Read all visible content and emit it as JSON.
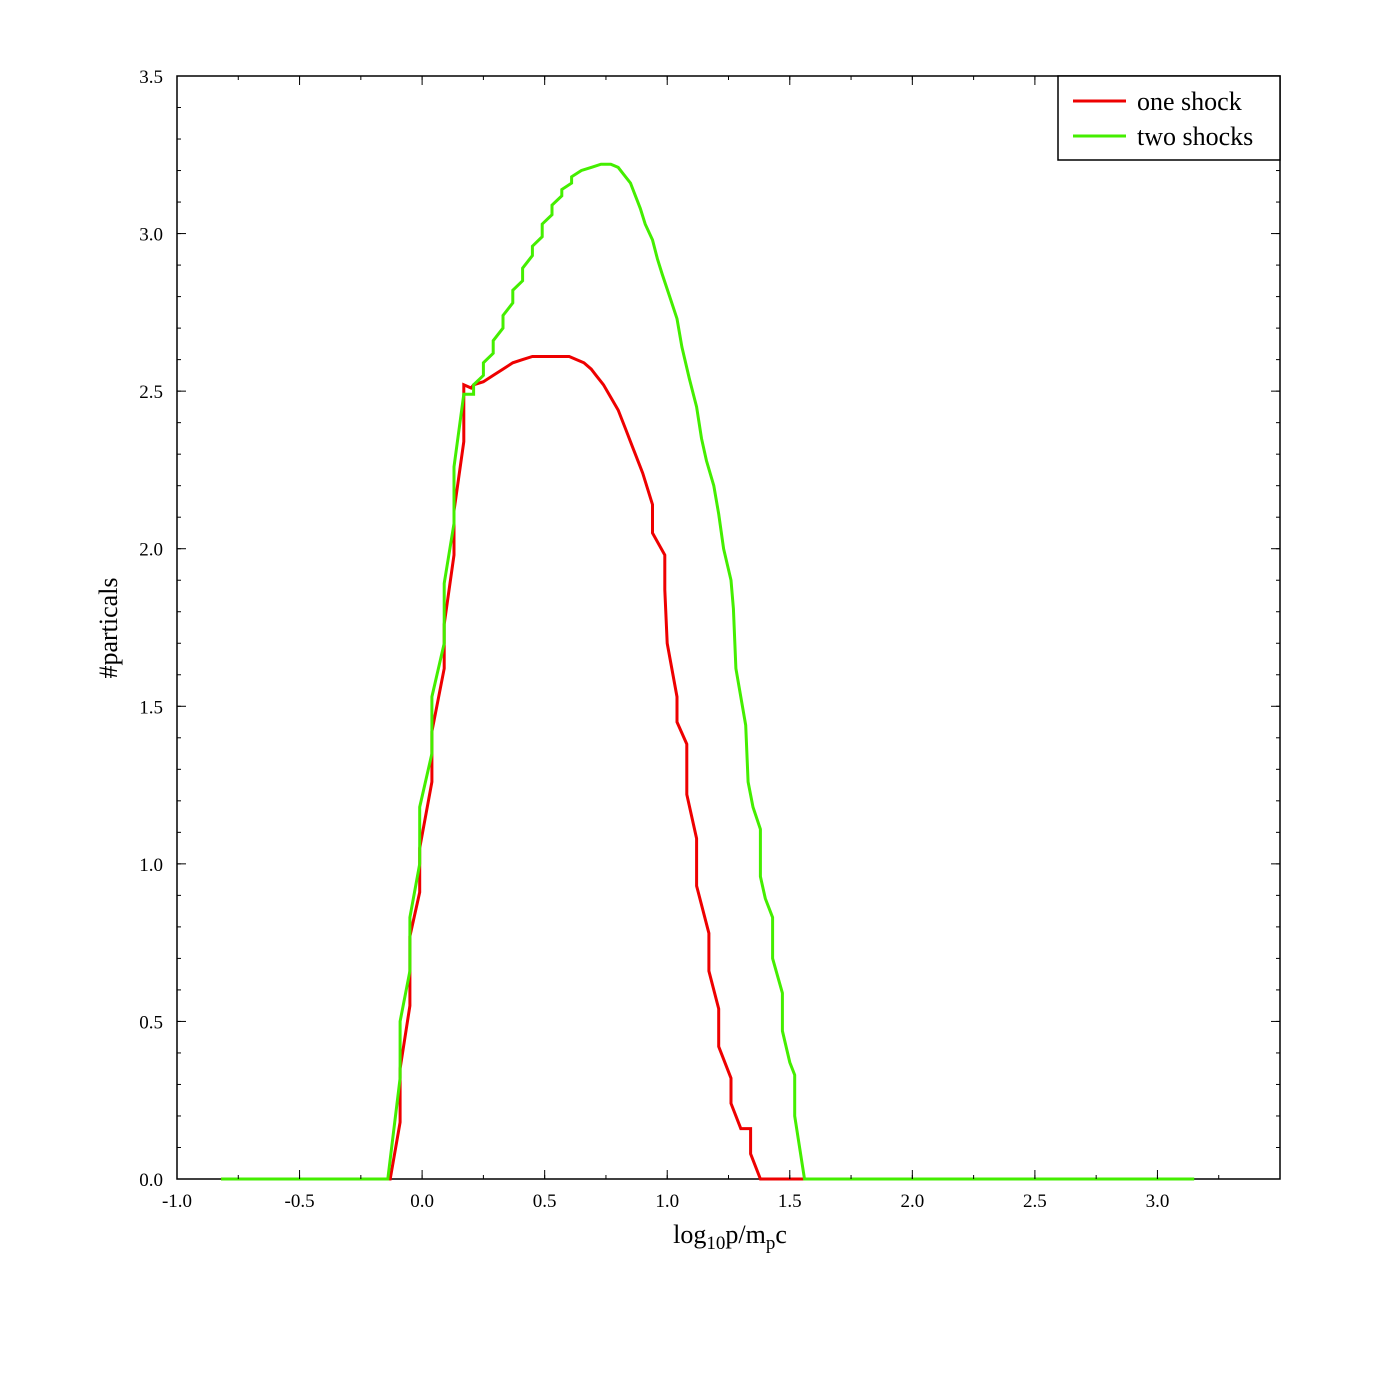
{
  "chart_data": {
    "type": "line",
    "title": "",
    "xlabel_parts": [
      "log",
      "10",
      "p/m",
      "p",
      "c"
    ],
    "ylabel": "#particals",
    "xlim": [
      -1.0,
      3.5
    ],
    "ylim": [
      0.0,
      3.5
    ],
    "x_ticks": [
      "-1.0",
      "-0.5",
      "0.0",
      "0.5",
      "1.0",
      "1.5",
      "2.0",
      "2.5",
      "3.0"
    ],
    "x_tick_values": [
      -1.0,
      -0.5,
      0.0,
      0.5,
      1.0,
      1.5,
      2.0,
      2.5,
      3.0
    ],
    "y_ticks": [
      "0.0",
      "0.5",
      "1.0",
      "1.5",
      "2.0",
      "2.5",
      "3.0",
      "3.5"
    ],
    "y_tick_values": [
      0.0,
      0.5,
      1.0,
      1.5,
      2.0,
      2.5,
      3.0,
      3.5
    ],
    "grid": false,
    "legend_position": "top-right",
    "series": [
      {
        "name": "one shock",
        "color": "#ee0000",
        "points": [
          [
            -0.82,
            0.0
          ],
          [
            -0.13,
            0.0
          ],
          [
            -0.09,
            0.18
          ],
          [
            -0.09,
            0.35
          ],
          [
            -0.05,
            0.55
          ],
          [
            -0.05,
            0.77
          ],
          [
            -0.01,
            0.91
          ],
          [
            -0.01,
            1.05
          ],
          [
            0.04,
            1.26
          ],
          [
            0.04,
            1.42
          ],
          [
            0.09,
            1.62
          ],
          [
            0.09,
            1.76
          ],
          [
            0.13,
            1.98
          ],
          [
            0.13,
            2.12
          ],
          [
            0.17,
            2.34
          ],
          [
            0.17,
            2.52
          ],
          [
            0.2,
            2.51
          ],
          [
            0.21,
            2.52
          ],
          [
            0.25,
            2.53
          ],
          [
            0.29,
            2.55
          ],
          [
            0.33,
            2.57
          ],
          [
            0.37,
            2.59
          ],
          [
            0.41,
            2.6
          ],
          [
            0.45,
            2.61
          ],
          [
            0.5,
            2.61
          ],
          [
            0.55,
            2.61
          ],
          [
            0.6,
            2.61
          ],
          [
            0.63,
            2.6
          ],
          [
            0.66,
            2.59
          ],
          [
            0.69,
            2.57
          ],
          [
            0.71,
            2.55
          ],
          [
            0.74,
            2.52
          ],
          [
            0.77,
            2.48
          ],
          [
            0.8,
            2.44
          ],
          [
            0.83,
            2.38
          ],
          [
            0.86,
            2.32
          ],
          [
            0.9,
            2.24
          ],
          [
            0.94,
            2.14
          ],
          [
            0.94,
            2.05
          ],
          [
            0.99,
            1.98
          ],
          [
            0.99,
            1.87
          ],
          [
            1.0,
            1.7
          ],
          [
            1.04,
            1.53
          ],
          [
            1.04,
            1.45
          ],
          [
            1.08,
            1.38
          ],
          [
            1.08,
            1.22
          ],
          [
            1.12,
            1.08
          ],
          [
            1.12,
            0.93
          ],
          [
            1.17,
            0.78
          ],
          [
            1.17,
            0.66
          ],
          [
            1.21,
            0.54
          ],
          [
            1.21,
            0.42
          ],
          [
            1.26,
            0.32
          ],
          [
            1.26,
            0.24
          ],
          [
            1.3,
            0.16
          ],
          [
            1.34,
            0.16
          ],
          [
            1.34,
            0.08
          ],
          [
            1.38,
            0.0
          ],
          [
            1.65,
            0.0
          ]
        ]
      },
      {
        "name": "two shocks",
        "color": "#44ee00",
        "points": [
          [
            -0.82,
            0.0
          ],
          [
            -0.14,
            0.0
          ],
          [
            -0.09,
            0.32
          ],
          [
            -0.09,
            0.5
          ],
          [
            -0.05,
            0.66
          ],
          [
            -0.05,
            0.83
          ],
          [
            -0.01,
            1.0
          ],
          [
            -0.01,
            1.18
          ],
          [
            0.04,
            1.35
          ],
          [
            0.04,
            1.53
          ],
          [
            0.09,
            1.7
          ],
          [
            0.09,
            1.89
          ],
          [
            0.13,
            2.08
          ],
          [
            0.13,
            2.26
          ],
          [
            0.17,
            2.49
          ],
          [
            0.21,
            2.49
          ],
          [
            0.21,
            2.52
          ],
          [
            0.25,
            2.55
          ],
          [
            0.25,
            2.59
          ],
          [
            0.29,
            2.62
          ],
          [
            0.29,
            2.66
          ],
          [
            0.33,
            2.7
          ],
          [
            0.33,
            2.74
          ],
          [
            0.37,
            2.78
          ],
          [
            0.37,
            2.82
          ],
          [
            0.41,
            2.85
          ],
          [
            0.41,
            2.89
          ],
          [
            0.45,
            2.93
          ],
          [
            0.45,
            2.96
          ],
          [
            0.49,
            2.99
          ],
          [
            0.49,
            3.03
          ],
          [
            0.53,
            3.06
          ],
          [
            0.53,
            3.09
          ],
          [
            0.57,
            3.12
          ],
          [
            0.57,
            3.14
          ],
          [
            0.61,
            3.16
          ],
          [
            0.61,
            3.18
          ],
          [
            0.65,
            3.2
          ],
          [
            0.69,
            3.21
          ],
          [
            0.73,
            3.22
          ],
          [
            0.77,
            3.22
          ],
          [
            0.8,
            3.21
          ],
          [
            0.82,
            3.19
          ],
          [
            0.85,
            3.16
          ],
          [
            0.87,
            3.12
          ],
          [
            0.89,
            3.08
          ],
          [
            0.91,
            3.03
          ],
          [
            0.94,
            2.98
          ],
          [
            0.96,
            2.92
          ],
          [
            0.98,
            2.87
          ],
          [
            1.01,
            2.8
          ],
          [
            1.04,
            2.73
          ],
          [
            1.06,
            2.64
          ],
          [
            1.09,
            2.54
          ],
          [
            1.12,
            2.45
          ],
          [
            1.14,
            2.35
          ],
          [
            1.16,
            2.28
          ],
          [
            1.19,
            2.2
          ],
          [
            1.21,
            2.11
          ],
          [
            1.23,
            2.0
          ],
          [
            1.26,
            1.9
          ],
          [
            1.27,
            1.81
          ],
          [
            1.28,
            1.62
          ],
          [
            1.32,
            1.44
          ],
          [
            1.33,
            1.26
          ],
          [
            1.35,
            1.18
          ],
          [
            1.38,
            1.11
          ],
          [
            1.38,
            0.96
          ],
          [
            1.4,
            0.89
          ],
          [
            1.43,
            0.83
          ],
          [
            1.43,
            0.7
          ],
          [
            1.47,
            0.59
          ],
          [
            1.47,
            0.47
          ],
          [
            1.5,
            0.37
          ],
          [
            1.52,
            0.33
          ],
          [
            1.52,
            0.2
          ],
          [
            1.56,
            0.0
          ],
          [
            3.15,
            0.0
          ]
        ]
      }
    ]
  }
}
